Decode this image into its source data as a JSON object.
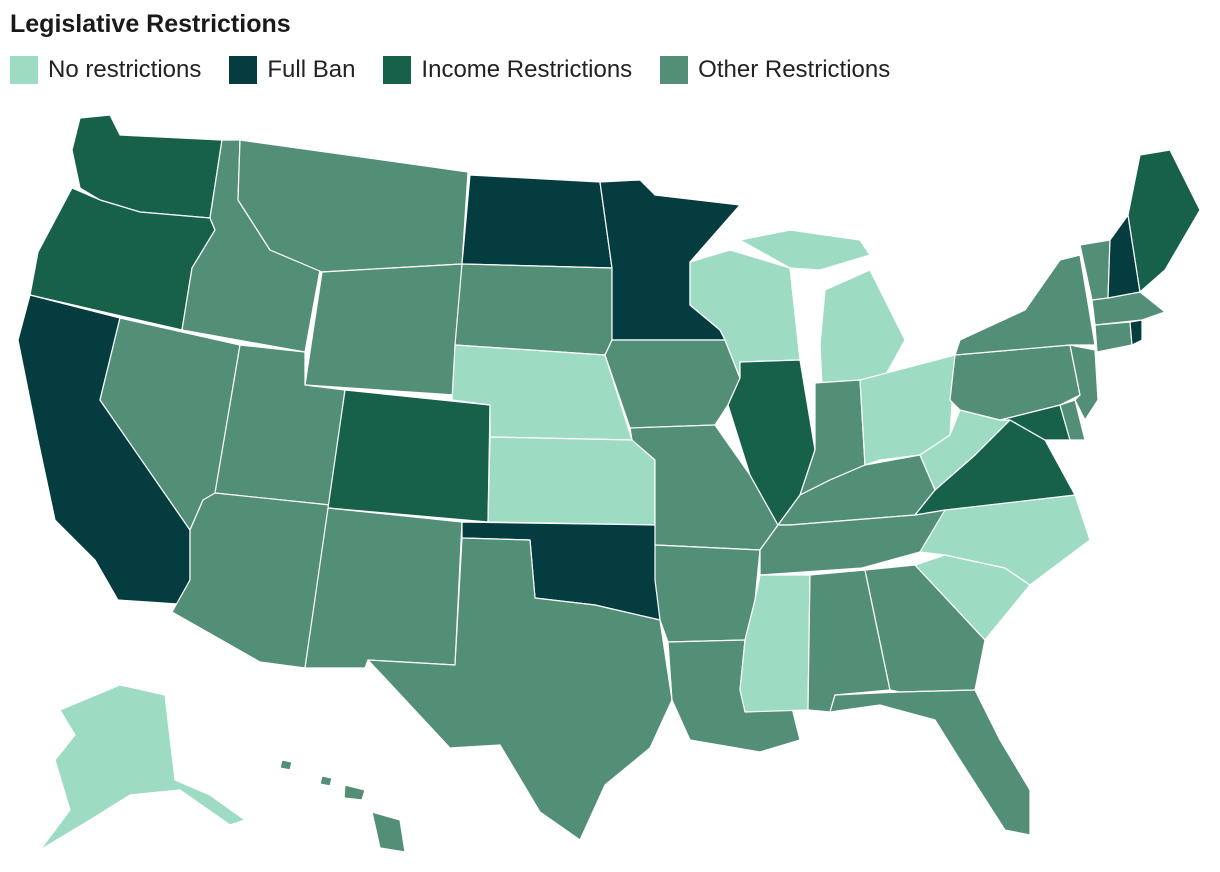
{
  "title": "Legislative Restrictions",
  "legend": [
    {
      "key": "none",
      "label": "No restrictions",
      "color": "#9ddcc3"
    },
    {
      "key": "ban",
      "label": "Full Ban",
      "color": "#053c40"
    },
    {
      "key": "income",
      "label": "Income Restrictions",
      "color": "#17614b"
    },
    {
      "key": "other",
      "label": "Other Restrictions",
      "color": "#528f76"
    }
  ],
  "states": [
    {
      "code": "WA",
      "category": "income"
    },
    {
      "code": "OR",
      "category": "income"
    },
    {
      "code": "CA",
      "category": "ban"
    },
    {
      "code": "ID",
      "category": "other"
    },
    {
      "code": "NV",
      "category": "other"
    },
    {
      "code": "MT",
      "category": "other"
    },
    {
      "code": "WY",
      "category": "other"
    },
    {
      "code": "UT",
      "category": "other"
    },
    {
      "code": "AZ",
      "category": "other"
    },
    {
      "code": "CO",
      "category": "income"
    },
    {
      "code": "NM",
      "category": "other"
    },
    {
      "code": "ND",
      "category": "ban"
    },
    {
      "code": "SD",
      "category": "other"
    },
    {
      "code": "NE",
      "category": "none"
    },
    {
      "code": "KS",
      "category": "none"
    },
    {
      "code": "OK",
      "category": "ban"
    },
    {
      "code": "TX",
      "category": "other"
    },
    {
      "code": "MN",
      "category": "ban"
    },
    {
      "code": "IA",
      "category": "other"
    },
    {
      "code": "MO",
      "category": "other"
    },
    {
      "code": "AR",
      "category": "other"
    },
    {
      "code": "LA",
      "category": "other"
    },
    {
      "code": "WI",
      "category": "none"
    },
    {
      "code": "IL",
      "category": "income"
    },
    {
      "code": "MI",
      "category": "none"
    },
    {
      "code": "IN",
      "category": "other"
    },
    {
      "code": "OH",
      "category": "none"
    },
    {
      "code": "KY",
      "category": "other"
    },
    {
      "code": "TN",
      "category": "other"
    },
    {
      "code": "MS",
      "category": "none"
    },
    {
      "code": "AL",
      "category": "other"
    },
    {
      "code": "GA",
      "category": "other"
    },
    {
      "code": "FL",
      "category": "other"
    },
    {
      "code": "SC",
      "category": "none"
    },
    {
      "code": "NC",
      "category": "none"
    },
    {
      "code": "VA",
      "category": "income"
    },
    {
      "code": "WV",
      "category": "none"
    },
    {
      "code": "MD",
      "category": "income"
    },
    {
      "code": "DE",
      "category": "other"
    },
    {
      "code": "PA",
      "category": "other"
    },
    {
      "code": "NJ",
      "category": "other"
    },
    {
      "code": "NY",
      "category": "other"
    },
    {
      "code": "CT",
      "category": "other"
    },
    {
      "code": "RI",
      "category": "ban"
    },
    {
      "code": "MA",
      "category": "other"
    },
    {
      "code": "VT",
      "category": "other"
    },
    {
      "code": "NH",
      "category": "ban"
    },
    {
      "code": "ME",
      "category": "income"
    },
    {
      "code": "AK",
      "category": "none"
    },
    {
      "code": "HI",
      "category": "other"
    }
  ]
}
